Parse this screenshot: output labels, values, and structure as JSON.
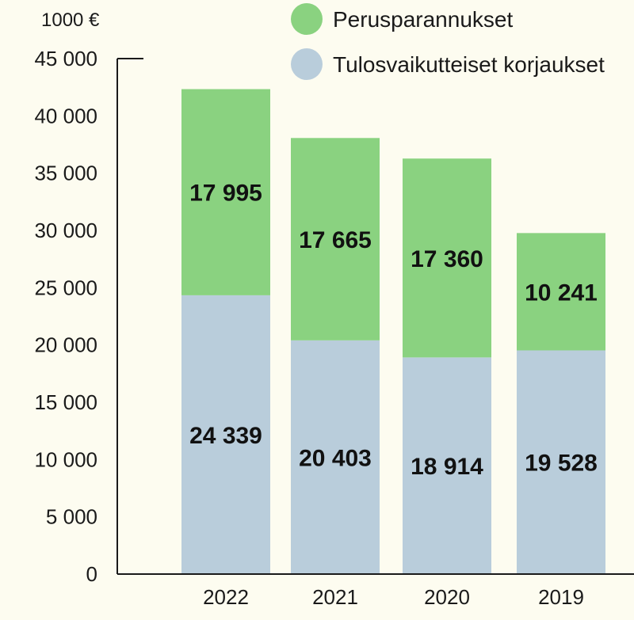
{
  "chart_data": {
    "type": "bar",
    "stacked": true,
    "unit_label": "1000 €",
    "categories": [
      "2022",
      "2021",
      "2020",
      "2019"
    ],
    "series": [
      {
        "name": "Tulosvaikutteiset korjaukset",
        "color": "#b9cddb",
        "values": [
          24339,
          20403,
          18914,
          19528
        ],
        "labels": [
          "24 339",
          "20 403",
          "18 914",
          "19 528"
        ]
      },
      {
        "name": "Perusparannukset",
        "color": "#8ad280",
        "values": [
          17995,
          17665,
          17360,
          10241
        ],
        "labels": [
          "17 995",
          "17 665",
          "17 360",
          "10 241"
        ]
      }
    ],
    "legend_order": [
      1,
      0
    ],
    "ylim": [
      0,
      45000
    ],
    "yticks": [
      0,
      5000,
      10000,
      15000,
      20000,
      25000,
      30000,
      35000,
      40000,
      45000
    ],
    "ytick_labels": [
      "0",
      "5 000",
      "10 000",
      "15 000",
      "20 000",
      "25 000",
      "30 000",
      "35 000",
      "40 000",
      "45 000"
    ],
    "grid": false,
    "legend_position": "top-right"
  }
}
